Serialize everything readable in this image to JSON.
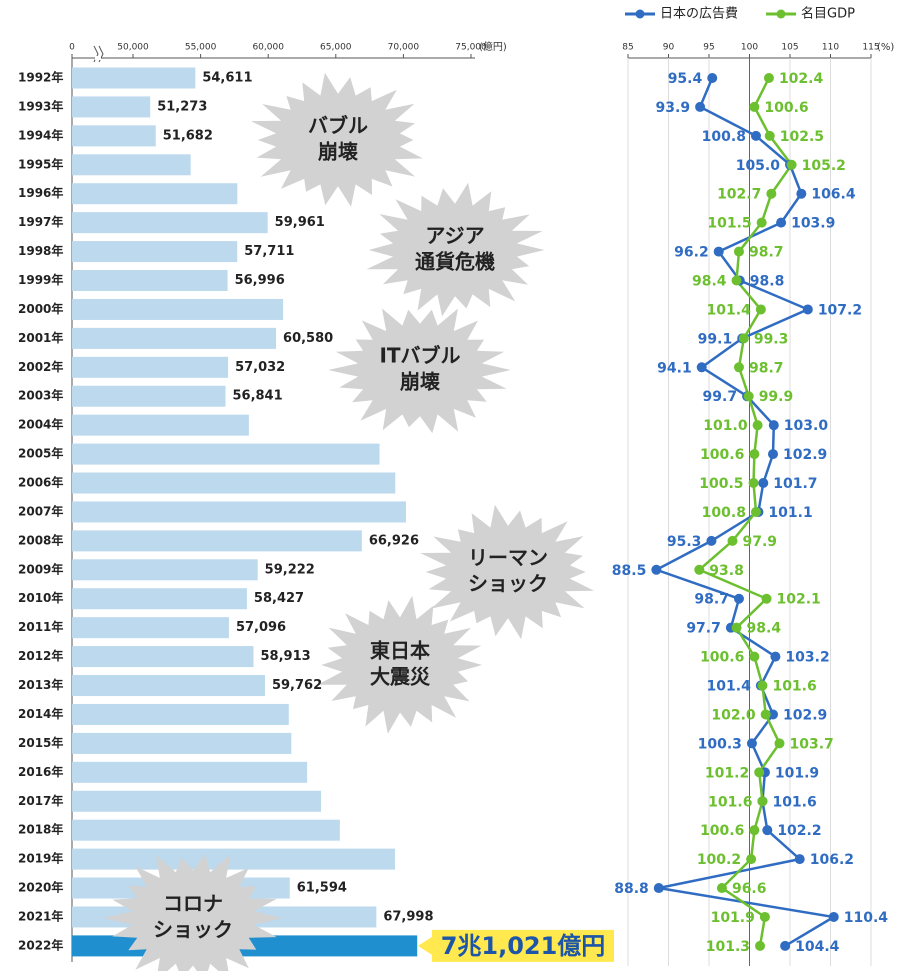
{
  "chart_data": [
    {
      "type": "bar",
      "categories": [
        "1992年",
        "1993年",
        "1994年",
        "1995年",
        "1996年",
        "1997年",
        "1998年",
        "1999年",
        "2000年",
        "2001年",
        "2002年",
        "2003年",
        "2004年",
        "2005年",
        "2006年",
        "2007年",
        "2008年",
        "2009年",
        "2010年",
        "2011年",
        "2012年",
        "2013年",
        "2014年",
        "2015年",
        "2016年",
        "2017年",
        "2018年",
        "2019年",
        "2020年",
        "2021年",
        "2022年"
      ],
      "values": [
        54611,
        51273,
        51682,
        54263,
        57715,
        59961,
        57711,
        56996,
        61102,
        60580,
        57032,
        56841,
        58571,
        68235,
        69399,
        70191,
        66926,
        59222,
        58427,
        57096,
        58913,
        59762,
        61522,
        61710,
        62880,
        63907,
        65300,
        69381,
        61594,
        67998,
        71021
      ],
      "value_labels": [
        "54,611",
        "51,273",
        "51,682",
        null,
        null,
        "59,961",
        "57,711",
        "56,996",
        null,
        "60,580",
        "57,032",
        "56,841",
        null,
        null,
        null,
        null,
        "66,926",
        "59,222",
        "58,427",
        "57,096",
        "58,913",
        "59,762",
        null,
        null,
        null,
        null,
        null,
        null,
        "61,594",
        "67,998",
        "7兆1,021億円"
      ],
      "colors": [
        "#bcd9ee",
        "#bcd9ee",
        "#bcd9ee",
        "#bcd9ee",
        "#bcd9ee",
        "#bcd9ee",
        "#bcd9ee",
        "#bcd9ee",
        "#bcd9ee",
        "#bcd9ee",
        "#bcd9ee",
        "#bcd9ee",
        "#bcd9ee",
        "#bcd9ee",
        "#bcd9ee",
        "#bcd9ee",
        "#bcd9ee",
        "#bcd9ee",
        "#bcd9ee",
        "#bcd9ee",
        "#bcd9ee",
        "#bcd9ee",
        "#bcd9ee",
        "#bcd9ee",
        "#bcd9ee",
        "#bcd9ee",
        "#bcd9ee",
        "#bcd9ee",
        "#bcd9ee",
        "#bcd9ee",
        "#1f8fcf"
      ],
      "xlim": [
        0,
        75000
      ],
      "xticks": [
        0,
        {
          "value": 50000,
          "label": "50,000"
        },
        {
          "value": 55000,
          "label": "55,000"
        },
        {
          "value": 60000,
          "label": "60,000"
        },
        {
          "value": 65000,
          "label": "65,000"
        },
        {
          "value": 70000,
          "label": "70,000"
        },
        {
          "value": 75000,
          "label": "75,000"
        }
      ],
      "xlabel": "(億円)",
      "annotations": [
        {
          "lines": [
            "バブル",
            "崩壊"
          ]
        },
        {
          "lines": [
            "アジア",
            "通貨危機"
          ]
        },
        {
          "lines": [
            "ITバブル",
            "崩壊"
          ]
        },
        {
          "lines": [
            "リーマン",
            "ショック"
          ]
        },
        {
          "lines": [
            "東日本",
            "大震災"
          ]
        },
        {
          "lines": [
            "コロナ",
            "ショック"
          ]
        }
      ]
    },
    {
      "type": "line",
      "xlim": [
        85,
        115
      ],
      "xticks": [
        85,
        90,
        95,
        100,
        105,
        110,
        115
      ],
      "xlabel": "(%)",
      "grid": true,
      "legend": "top-right",
      "series": [
        {
          "name": "日本の広告費",
          "color": "#2f6cc2",
          "values": [
            95.4,
            93.9,
            100.8,
            105.0,
            106.4,
            103.9,
            96.2,
            98.8,
            107.2,
            99.1,
            94.1,
            99.7,
            103.0,
            102.9,
            101.7,
            101.1,
            95.3,
            88.5,
            98.7,
            97.7,
            103.2,
            101.4,
            102.9,
            100.3,
            101.9,
            101.6,
            102.2,
            106.2,
            88.8,
            110.4,
            104.4
          ],
          "value_labels": [
            "95.4",
            "93.9",
            "100.8",
            "105.0",
            "106.4",
            "103.9",
            "96.2",
            "98.8",
            "107.2",
            "99.1",
            "94.1",
            "99.7",
            "103.0",
            "102.9",
            "101.7",
            "101.1",
            "95.3",
            "88.5",
            "98.7",
            "97.7",
            "103.2",
            "101.4",
            "102.9",
            "100.3",
            "101.9",
            "101.6",
            "102.2",
            "106.2",
            "88.8",
            "110.4",
            "104.4"
          ]
        },
        {
          "name": "名目GDP",
          "color": "#6cbf2f",
          "values": [
            102.4,
            100.6,
            102.5,
            105.2,
            102.7,
            101.5,
            98.7,
            98.4,
            101.4,
            99.3,
            98.7,
            99.9,
            101.0,
            100.6,
            100.5,
            100.8,
            97.9,
            93.8,
            102.1,
            98.4,
            100.6,
            101.6,
            102.0,
            103.7,
            101.2,
            101.6,
            100.6,
            100.2,
            96.6,
            101.9,
            101.3
          ],
          "value_labels": [
            "102.4",
            "100.6",
            "102.5",
            "105.2",
            "102.7",
            "101.5",
            "98.7",
            "98.4",
            "101.4",
            "99.3",
            "98.7",
            "99.9",
            "101.0",
            "100.6",
            "100.5",
            "100.8",
            "97.9",
            "93.8",
            "102.1",
            "98.4",
            "100.6",
            "101.6",
            "102.0",
            "103.7",
            "101.2",
            "101.6",
            "100.6",
            "100.2",
            "96.6",
            "101.9",
            "101.3"
          ]
        }
      ]
    }
  ]
}
